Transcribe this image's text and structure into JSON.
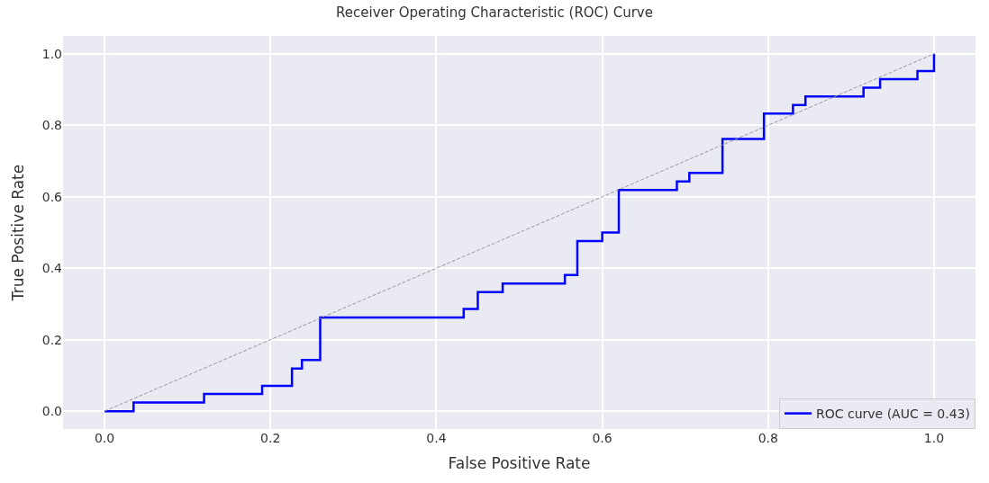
{
  "chart_data": {
    "type": "step",
    "title": "Receiver Operating Characteristic (ROC) Curve",
    "xlabel": "False Positive Rate",
    "ylabel": "True Positive Rate",
    "series": [
      {
        "name": "ROC curve (AUC = 0.43)",
        "color": "#0000ff",
        "x": [
          0,
          0.035,
          0.12,
          0.19,
          0.226,
          0.238,
          0.26,
          0.433,
          0.45,
          0.48,
          0.555,
          0.57,
          0.6,
          0.62,
          0.69,
          0.705,
          0.745,
          0.795,
          0.83,
          0.845,
          0.915,
          0.935,
          0.98,
          1.0
        ],
        "values": [
          0,
          0.024,
          0.048,
          0.071,
          0.119,
          0.143,
          0.262,
          0.286,
          0.333,
          0.357,
          0.381,
          0.476,
          0.5,
          0.619,
          0.643,
          0.667,
          0.762,
          0.833,
          0.857,
          0.881,
          0.905,
          0.929,
          0.952,
          1.0
        ]
      },
      {
        "color": "#999999",
        "type": "line",
        "line_style": "dashed",
        "x": [
          0,
          1
        ],
        "values": [
          0,
          1
        ]
      }
    ],
    "xlim": [
      -0.05,
      1.05
    ],
    "ylim": [
      -0.05,
      1.05
    ],
    "xticks": [
      {
        "value": 0,
        "label": "0.0"
      },
      0.2,
      0.4,
      0.6,
      0.8,
      {
        "value": 1,
        "label": "1.0"
      }
    ],
    "yticks": [
      {
        "value": 0,
        "label": "0.0"
      },
      0.2,
      0.4,
      0.6,
      0.8,
      {
        "value": 1,
        "label": "1.0"
      }
    ],
    "grid": true,
    "legend": "bottom right"
  }
}
